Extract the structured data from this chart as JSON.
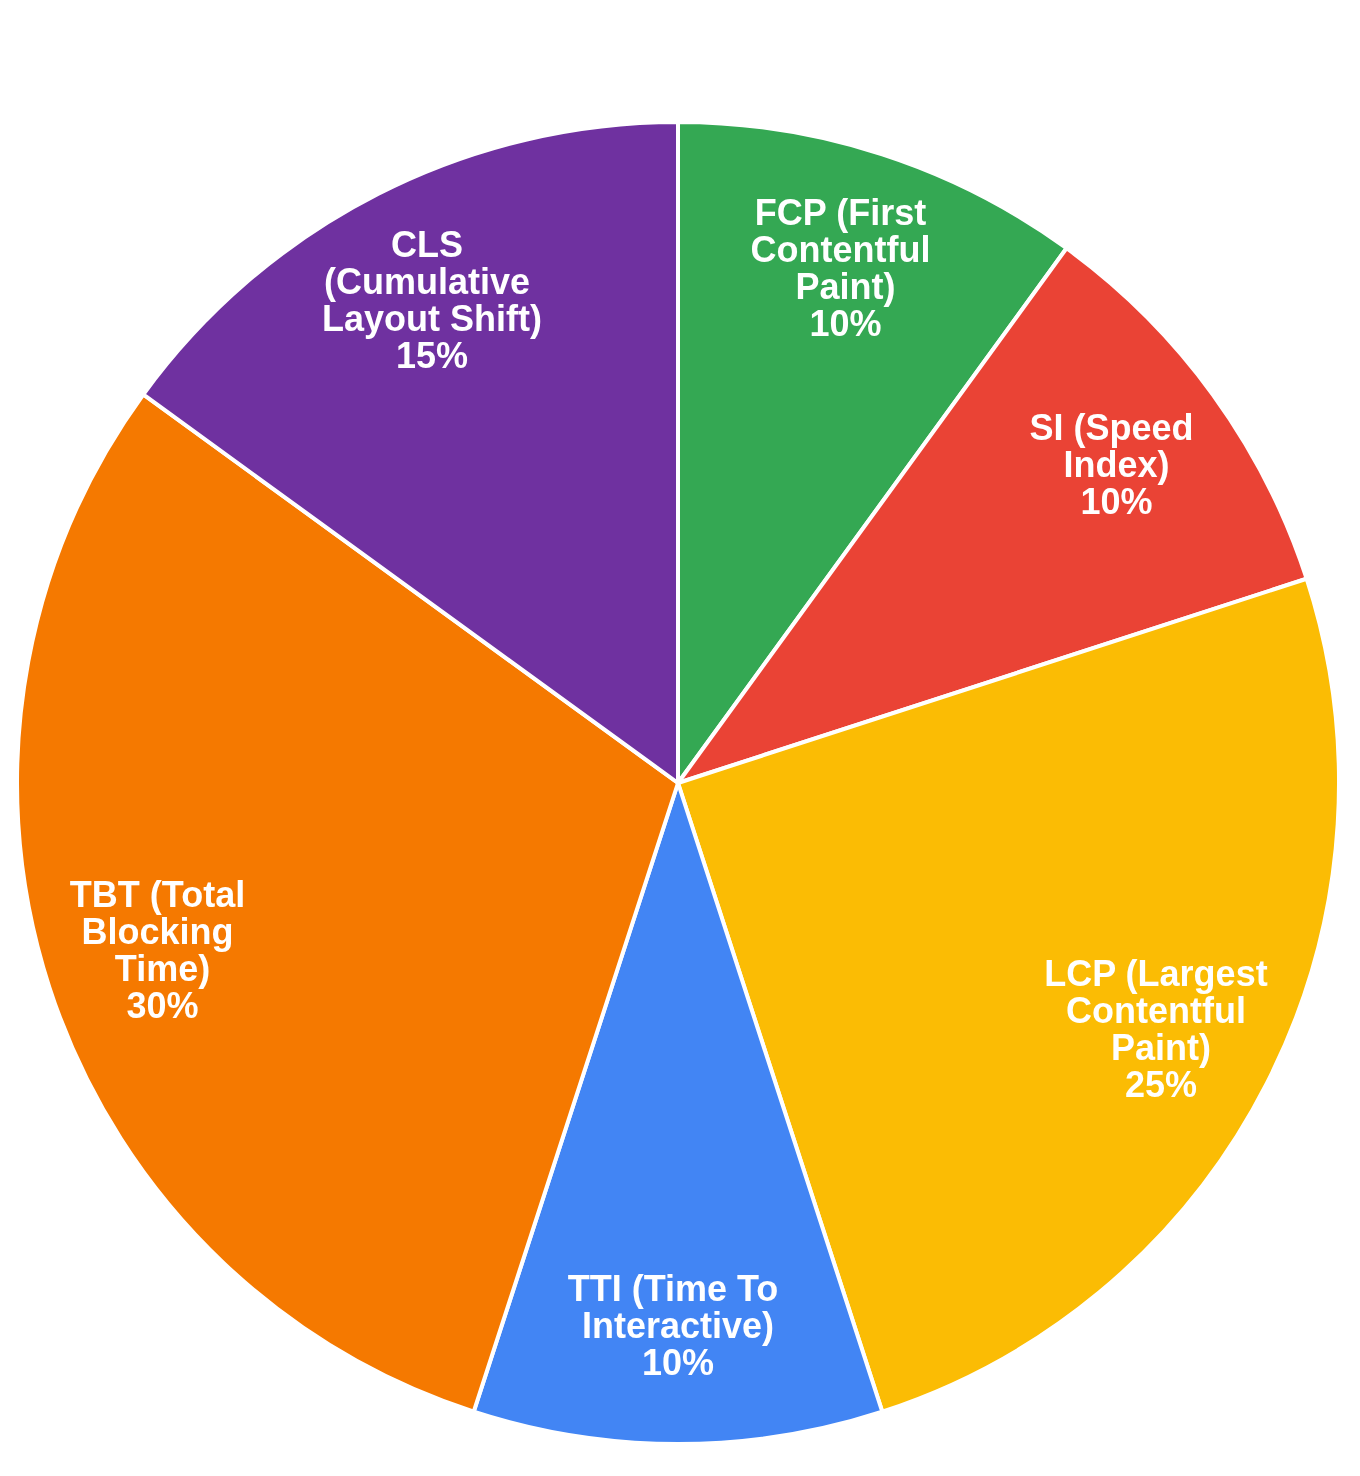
{
  "chart_data": {
    "type": "pie",
    "categories": [
      "FCP (First Contentful Paint)",
      "SI (Speed Index)",
      "LCP (Largest Contentful Paint)",
      "TTI (Time To Interactive)",
      "TBT (Total Blocking Time)",
      "CLS (Cumulative Layout Shift)"
    ],
    "values": [
      10,
      10,
      25,
      10,
      30,
      15
    ],
    "colors": [
      "#34a853",
      "#ea4335",
      "#fbbc04",
      "#4285f4",
      "#f57900",
      "#6f31a0"
    ],
    "value_labels": [
      "10%",
      "10%",
      "25%",
      "10%",
      "30%",
      "15%"
    ]
  }
}
